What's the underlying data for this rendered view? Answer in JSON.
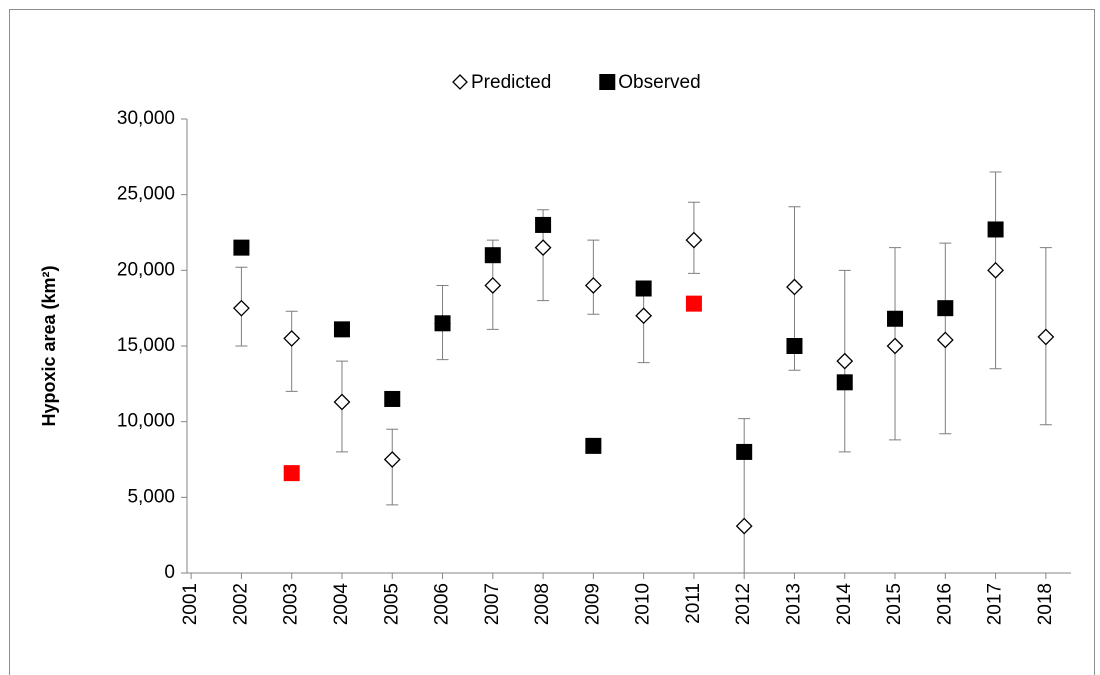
{
  "chart_data": {
    "type": "scatter",
    "y_label": "Hypoxic area (km²)",
    "categories": [
      "2001",
      "2002",
      "2003",
      "2004",
      "2005",
      "2006",
      "2007",
      "2008",
      "2009",
      "2010",
      "2011",
      "2012",
      "2013",
      "2014",
      "2015",
      "2016",
      "2017",
      "2018"
    ],
    "ylim": [
      0,
      30000
    ],
    "yticks": [
      0,
      {
        "value": 5000,
        "label": "5,000"
      },
      {
        "value": 10000,
        "label": "10,000"
      },
      {
        "value": 15000,
        "label": "15,000"
      },
      {
        "value": 20000,
        "label": "20,000"
      },
      {
        "value": 25000,
        "label": "25,000"
      },
      {
        "value": 30000,
        "label": "30,000"
      }
    ],
    "series": [
      {
        "name": "Predicted",
        "marker": "diamond",
        "color": "#000000",
        "values": [
          null,
          17500,
          15500,
          11300,
          7500,
          16500,
          19000,
          21500,
          19000,
          17000,
          22000,
          3100,
          18900,
          14000,
          15000,
          15400,
          20000,
          15600
        ],
        "lower": [
          null,
          15000,
          12000,
          8000,
          4500,
          14100,
          16100,
          18000,
          17100,
          13900,
          19800,
          0,
          13400,
          8000,
          8800,
          9200,
          13500,
          9800
        ],
        "upper": [
          null,
          20200,
          17300,
          14000,
          9500,
          19000,
          22000,
          24000,
          22000,
          18800,
          24500,
          10200,
          24200,
          20000,
          21500,
          21800,
          26500,
          21500
        ]
      },
      {
        "name": "Observed",
        "marker": "square",
        "color": "#000000",
        "values": [
          null,
          21500,
          6600,
          16100,
          11500,
          16500,
          21000,
          23000,
          8400,
          18800,
          17800,
          8000,
          15000,
          12600,
          16800,
          17500,
          22700,
          null
        ],
        "point_colors": [
          null,
          "#000000",
          "#ff0000",
          "#000000",
          "#000000",
          "#000000",
          "#000000",
          "#000000",
          "#000000",
          "#000000",
          "#ff0000",
          "#000000",
          "#000000",
          "#000000",
          "#000000",
          "#000000",
          "#000000",
          null
        ]
      }
    ],
    "legend": "top"
  }
}
